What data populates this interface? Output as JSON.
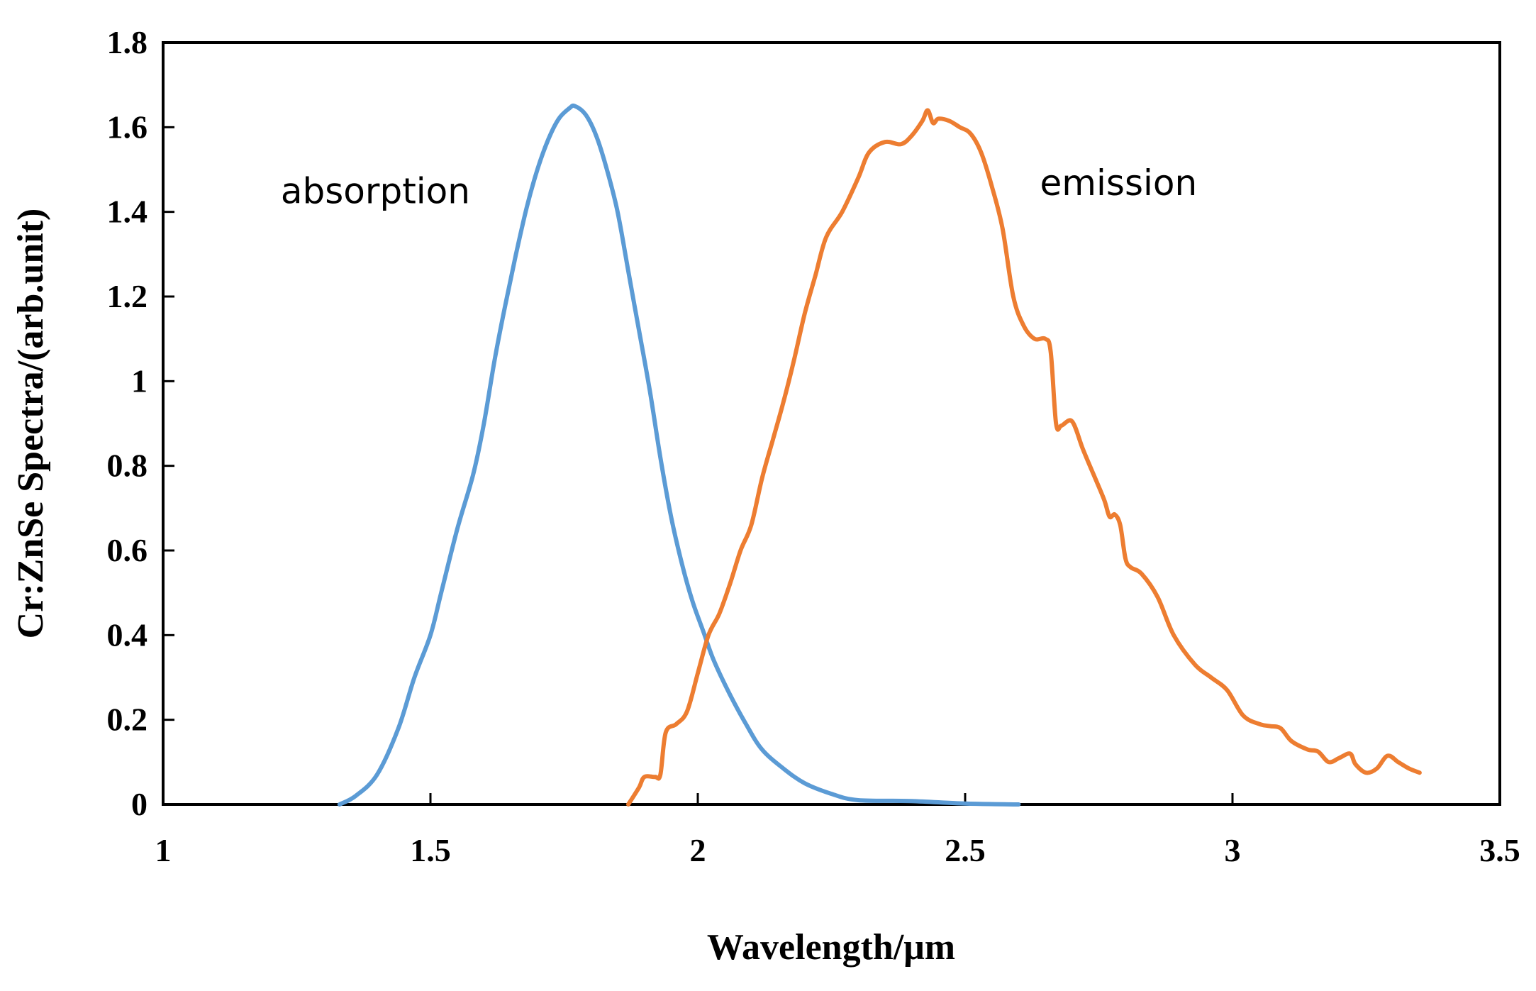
{
  "chart_data": {
    "type": "line",
    "title": "",
    "xlabel": "Wavelength/μm",
    "ylabel": "Cr:ZnSe Spectra/(arb.unit)",
    "xlim": [
      1,
      3.5
    ],
    "ylim": [
      0,
      1.8
    ],
    "xticks": [
      1,
      1.5,
      2,
      2.5,
      3,
      3.5
    ],
    "xtick_labels": [
      "1",
      "1.5",
      "2",
      "2.5",
      "3",
      "3.5"
    ],
    "yticks": [
      0,
      0.2,
      0.4,
      0.6,
      0.8,
      1,
      1.2,
      1.4,
      1.6,
      1.8
    ],
    "ytick_labels": [
      "0",
      "0.2",
      "0.4",
      "0.6",
      "0.8",
      "1",
      "1.2",
      "1.4",
      "1.6",
      "1.8"
    ],
    "grid": false,
    "legend": "none",
    "series": [
      {
        "name": "absorption",
        "color": "#5b9bd5",
        "points": [
          [
            1.33,
            0.0
          ],
          [
            1.36,
            0.02
          ],
          [
            1.4,
            0.07
          ],
          [
            1.44,
            0.18
          ],
          [
            1.47,
            0.3
          ],
          [
            1.5,
            0.4
          ],
          [
            1.52,
            0.5
          ],
          [
            1.55,
            0.65
          ],
          [
            1.58,
            0.78
          ],
          [
            1.6,
            0.9
          ],
          [
            1.62,
            1.05
          ],
          [
            1.64,
            1.18
          ],
          [
            1.66,
            1.3
          ],
          [
            1.68,
            1.41
          ],
          [
            1.7,
            1.5
          ],
          [
            1.72,
            1.57
          ],
          [
            1.74,
            1.62
          ],
          [
            1.76,
            1.645
          ],
          [
            1.77,
            1.65
          ],
          [
            1.79,
            1.63
          ],
          [
            1.81,
            1.58
          ],
          [
            1.83,
            1.5
          ],
          [
            1.85,
            1.4
          ],
          [
            1.87,
            1.26
          ],
          [
            1.89,
            1.12
          ],
          [
            1.91,
            0.98
          ],
          [
            1.93,
            0.82
          ],
          [
            1.95,
            0.68
          ],
          [
            1.97,
            0.57
          ],
          [
            1.99,
            0.48
          ],
          [
            2.01,
            0.41
          ],
          [
            2.03,
            0.34
          ],
          [
            2.06,
            0.26
          ],
          [
            2.09,
            0.19
          ],
          [
            2.12,
            0.13
          ],
          [
            2.16,
            0.085
          ],
          [
            2.2,
            0.05
          ],
          [
            2.25,
            0.025
          ],
          [
            2.3,
            0.01
          ],
          [
            2.4,
            0.008
          ],
          [
            2.5,
            0.002
          ],
          [
            2.6,
            0.0
          ]
        ]
      },
      {
        "name": "emission",
        "color": "#ed7d31",
        "points": [
          [
            1.87,
            0.0
          ],
          [
            1.89,
            0.04
          ],
          [
            1.9,
            0.065
          ],
          [
            1.92,
            0.065
          ],
          [
            1.93,
            0.07
          ],
          [
            1.94,
            0.17
          ],
          [
            1.96,
            0.19
          ],
          [
            1.98,
            0.22
          ],
          [
            2.0,
            0.31
          ],
          [
            2.02,
            0.4
          ],
          [
            2.04,
            0.45
          ],
          [
            2.06,
            0.52
          ],
          [
            2.08,
            0.6
          ],
          [
            2.1,
            0.66
          ],
          [
            2.12,
            0.77
          ],
          [
            2.14,
            0.86
          ],
          [
            2.16,
            0.95
          ],
          [
            2.18,
            1.05
          ],
          [
            2.2,
            1.16
          ],
          [
            2.22,
            1.25
          ],
          [
            2.24,
            1.34
          ],
          [
            2.27,
            1.4
          ],
          [
            2.3,
            1.48
          ],
          [
            2.32,
            1.54
          ],
          [
            2.35,
            1.565
          ],
          [
            2.38,
            1.56
          ],
          [
            2.4,
            1.58
          ],
          [
            2.42,
            1.615
          ],
          [
            2.43,
            1.64
          ],
          [
            2.44,
            1.61
          ],
          [
            2.45,
            1.62
          ],
          [
            2.47,
            1.615
          ],
          [
            2.49,
            1.6
          ],
          [
            2.51,
            1.585
          ],
          [
            2.53,
            1.54
          ],
          [
            2.55,
            1.46
          ],
          [
            2.57,
            1.36
          ],
          [
            2.59,
            1.2
          ],
          [
            2.61,
            1.13
          ],
          [
            2.63,
            1.1
          ],
          [
            2.65,
            1.1
          ],
          [
            2.66,
            1.07
          ],
          [
            2.67,
            0.9
          ],
          [
            2.68,
            0.895
          ],
          [
            2.7,
            0.905
          ],
          [
            2.72,
            0.84
          ],
          [
            2.74,
            0.78
          ],
          [
            2.76,
            0.72
          ],
          [
            2.77,
            0.68
          ],
          [
            2.78,
            0.685
          ],
          [
            2.79,
            0.66
          ],
          [
            2.8,
            0.58
          ],
          [
            2.81,
            0.56
          ],
          [
            2.83,
            0.545
          ],
          [
            2.86,
            0.49
          ],
          [
            2.89,
            0.4
          ],
          [
            2.93,
            0.33
          ],
          [
            2.96,
            0.3
          ],
          [
            2.99,
            0.27
          ],
          [
            3.02,
            0.21
          ],
          [
            3.05,
            0.19
          ],
          [
            3.07,
            0.185
          ],
          [
            3.09,
            0.18
          ],
          [
            3.11,
            0.15
          ],
          [
            3.14,
            0.13
          ],
          [
            3.16,
            0.125
          ],
          [
            3.18,
            0.1
          ],
          [
            3.2,
            0.11
          ],
          [
            3.22,
            0.12
          ],
          [
            3.23,
            0.095
          ],
          [
            3.25,
            0.075
          ],
          [
            3.27,
            0.085
          ],
          [
            3.29,
            0.115
          ],
          [
            3.31,
            0.1
          ],
          [
            3.33,
            0.085
          ],
          [
            3.35,
            0.075
          ]
        ]
      }
    ],
    "annotations": [
      {
        "text": "absorption",
        "x": 1.22,
        "y": 1.42
      },
      {
        "text": "emission",
        "x": 2.64,
        "y": 1.44
      }
    ]
  }
}
